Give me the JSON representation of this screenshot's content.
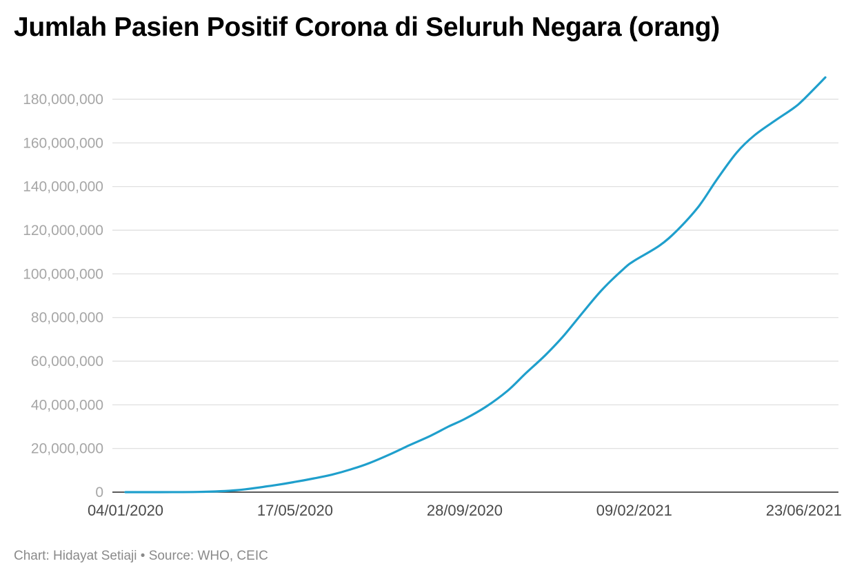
{
  "title": "Jumlah Pasien Positif Corona di Seluruh Negara (orang)",
  "footer": {
    "credit": "Chart: Hidayat Setiaji",
    "separator": "•",
    "source": "Source: WHO, CEIC"
  },
  "chart_data": {
    "type": "line",
    "title": "Jumlah Pasien Positif Corona di Seluruh Negara (orang)",
    "xlabel": "",
    "ylabel": "",
    "ylim": [
      0,
      190000000
    ],
    "yticks": [
      0,
      20000000,
      40000000,
      60000000,
      80000000,
      100000000,
      120000000,
      140000000,
      160000000,
      180000000
    ],
    "ytick_labels": [
      "0",
      "20,000,000",
      "40,000,000",
      "60,000,000",
      "80,000,000",
      "100,000,000",
      "120,000,000",
      "140,000,000",
      "160,000,000",
      "180,000,000"
    ],
    "xlim": [
      "2020-01-04",
      "2021-07-10"
    ],
    "xticks": [
      "2020-01-04",
      "2020-05-17",
      "2020-09-28",
      "2021-02-09",
      "2021-06-23"
    ],
    "xtick_labels": [
      "04/01/2020",
      "17/05/2020",
      "28/09/2020",
      "09/02/2021",
      "23/06/2021"
    ],
    "grid": true,
    "line_color": "#1f9fcc",
    "series": [
      {
        "x": [
          "2020-01-04",
          "2020-02-01",
          "2020-03-01",
          "2020-04-01",
          "2020-05-01",
          "2020-05-17",
          "2020-06-01",
          "2020-06-15",
          "2020-07-01",
          "2020-07-15",
          "2020-08-01",
          "2020-08-15",
          "2020-09-01",
          "2020-09-15",
          "2020-09-28",
          "2020-10-15",
          "2020-11-01",
          "2020-11-15",
          "2020-12-01",
          "2020-12-15",
          "2021-01-01",
          "2021-01-15",
          "2021-02-01",
          "2021-02-09",
          "2021-03-01",
          "2021-03-15",
          "2021-04-01",
          "2021-04-15",
          "2021-05-01",
          "2021-05-15",
          "2021-06-01",
          "2021-06-15",
          "2021-06-23",
          "2021-07-10"
        ],
        "y": [
          0,
          10000,
          80000,
          900000,
          3200000,
          4700000,
          6300000,
          8000000,
          10600000,
          13400000,
          17600000,
          21400000,
          25800000,
          30000000,
          33500000,
          39200000,
          46500000,
          54300000,
          62900000,
          71500000,
          83500000,
          93000000,
          102500000,
          106000000,
          113000000,
          120000000,
          131000000,
          143000000,
          155600000,
          163500000,
          170500000,
          176000000,
          180000000,
          190000000
        ]
      }
    ]
  }
}
